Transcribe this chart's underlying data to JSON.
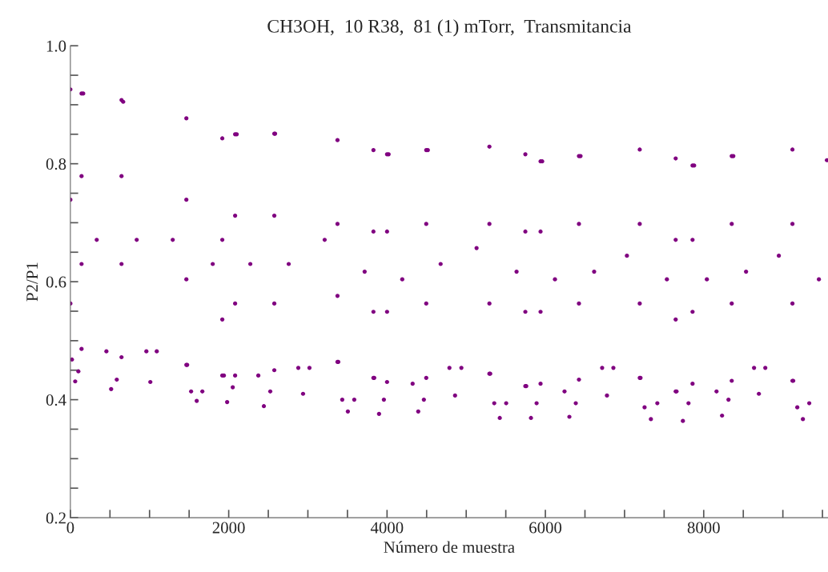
{
  "chart_data": {
    "type": "scatter",
    "title": "CH3OH,  10 R38,  81 (1) mTorr,  Transmitancia",
    "xlabel": "Número de muestra",
    "ylabel": "P2/P1",
    "xlim": [
      0,
      9570
    ],
    "ylim": [
      0.2,
      1.0
    ],
    "xticks": [
      0,
      {
        "value": 500,
        "label": null
      },
      {
        "value": 1000,
        "label": null
      },
      {
        "value": 1500,
        "label": null
      },
      2000,
      {
        "value": 2500,
        "label": null
      },
      {
        "value": 3000,
        "label": null
      },
      {
        "value": 3500,
        "label": null
      },
      4000,
      {
        "value": 4500,
        "label": null
      },
      {
        "value": 5000,
        "label": null
      },
      {
        "value": 5500,
        "label": null
      },
      6000,
      {
        "value": 6500,
        "label": null
      },
      {
        "value": 7000,
        "label": null
      },
      {
        "value": 7500,
        "label": null
      },
      8000,
      {
        "value": 8500,
        "label": null
      },
      {
        "value": 9000,
        "label": null
      },
      {
        "value": 9500,
        "label": null
      }
    ],
    "yticks": [
      {
        "value": 0.2,
        "label": "0.2"
      },
      {
        "value": 0.25,
        "label": null
      },
      {
        "value": 0.3,
        "label": null
      },
      {
        "value": 0.35,
        "label": null
      },
      {
        "value": 0.4,
        "label": "0.4"
      },
      {
        "value": 0.45,
        "label": null
      },
      {
        "value": 0.5,
        "label": null
      },
      {
        "value": 0.55,
        "label": null
      },
      {
        "value": 0.6,
        "label": "0.6"
      },
      {
        "value": 0.65,
        "label": null
      },
      {
        "value": 0.7,
        "label": null
      },
      {
        "value": 0.75,
        "label": null
      },
      {
        "value": 0.8,
        "label": "0.8"
      },
      {
        "value": 0.85,
        "label": null
      },
      {
        "value": 0.9,
        "label": null
      },
      {
        "value": 0.95,
        "label": null
      },
      {
        "value": 1.0,
        "label": "1.0"
      }
    ],
    "grid": false,
    "marker": "circle",
    "series": [
      {
        "color": "#800080",
        "x": [
          0,
          0,
          0,
          20,
          61,
          101,
          141,
          141,
          141,
          141,
          162,
          333,
          455,
          515,
          586,
          646,
          646,
          646,
          646,
          667,
          838,
          960,
          1010,
          1091,
          1293,
          1465,
          1465,
          1465,
          1465,
          1475,
          1525,
          1596,
          1667,
          1798,
          1919,
          1919,
          1919,
          1919,
          1939,
          1980,
          2051,
          2081,
          2081,
          2081,
          2081,
          2101,
          2273,
          2374,
          2444,
          2525,
          2576,
          2576,
          2576,
          2576,
          2586,
          2758,
          2879,
          2939,
          3020,
          3212,
          3374,
          3374,
          3374,
          3374,
          3384,
          3434,
          3505,
          3586,
          3717,
          3828,
          3828,
          3828,
          3828,
          3838,
          3899,
          3960,
          4000,
          4000,
          4000,
          4000,
          4020,
          4192,
          4323,
          4394,
          4465,
          4495,
          4495,
          4495,
          4495,
          4515,
          4677,
          4788,
          4859,
          4939,
          5131,
          5293,
          5293,
          5293,
          5293,
          5303,
          5354,
          5424,
          5505,
          5636,
          5747,
          5747,
          5747,
          5747,
          5758,
          5818,
          5889,
          5939,
          5939,
          5939,
          5939,
          5960,
          6121,
          6242,
          6303,
          6384,
          6424,
          6424,
          6424,
          6424,
          6444,
          6616,
          6717,
          6778,
          6859,
          7030,
          7192,
          7192,
          7192,
          7192,
          7202,
          7253,
          7333,
          7414,
          7535,
          7646,
          7646,
          7646,
          7646,
          7657,
          7737,
          7808,
          7859,
          7859,
          7859,
          7859,
          7879,
          8040,
          8162,
          8232,
          8313,
          8354,
          8354,
          8354,
          8354,
          8374,
          8535,
          8636,
          8697,
          8778,
          8949,
          9121,
          9121,
          9121,
          9121,
          9131,
          9182,
          9253,
          9333,
          9455,
          9556
        ],
        "values": [
          0.926,
          0.739,
          0.563,
          0.468,
          0.431,
          0.448,
          0.486,
          0.63,
          0.779,
          0.919,
          0.919,
          0.671,
          0.482,
          0.418,
          0.434,
          0.472,
          0.63,
          0.779,
          0.908,
          0.905,
          0.671,
          0.482,
          0.43,
          0.482,
          0.671,
          0.877,
          0.739,
          0.604,
          0.459,
          0.459,
          0.414,
          0.398,
          0.414,
          0.63,
          0.843,
          0.671,
          0.536,
          0.441,
          0.441,
          0.396,
          0.421,
          0.441,
          0.563,
          0.712,
          0.85,
          0.85,
          0.63,
          0.441,
          0.389,
          0.414,
          0.45,
          0.563,
          0.712,
          0.851,
          0.851,
          0.63,
          0.454,
          0.41,
          0.454,
          0.671,
          0.84,
          0.698,
          0.576,
          0.464,
          0.464,
          0.4,
          0.38,
          0.4,
          0.617,
          0.823,
          0.685,
          0.549,
          0.437,
          0.437,
          0.376,
          0.4,
          0.43,
          0.549,
          0.685,
          0.816,
          0.816,
          0.604,
          0.427,
          0.38,
          0.4,
          0.437,
          0.563,
          0.698,
          0.823,
          0.823,
          0.63,
          0.454,
          0.407,
          0.454,
          0.657,
          0.829,
          0.698,
          0.563,
          0.444,
          0.444,
          0.394,
          0.369,
          0.394,
          0.617,
          0.816,
          0.685,
          0.549,
          0.423,
          0.423,
          0.369,
          0.394,
          0.427,
          0.549,
          0.685,
          0.804,
          0.804,
          0.604,
          0.414,
          0.371,
          0.394,
          0.434,
          0.563,
          0.698,
          0.813,
          0.813,
          0.617,
          0.454,
          0.407,
          0.454,
          0.644,
          0.824,
          0.698,
          0.563,
          0.437,
          0.437,
          0.387,
          0.367,
          0.394,
          0.604,
          0.809,
          0.671,
          0.536,
          0.414,
          0.414,
          0.364,
          0.394,
          0.427,
          0.549,
          0.671,
          0.797,
          0.797,
          0.604,
          0.414,
          0.373,
          0.4,
          0.432,
          0.563,
          0.698,
          0.813,
          0.813,
          0.617,
          0.454,
          0.41,
          0.454,
          0.644,
          0.824,
          0.698,
          0.563,
          0.432,
          0.432,
          0.387,
          0.367,
          0.394,
          0.604,
          0.806
        ]
      }
    ]
  }
}
